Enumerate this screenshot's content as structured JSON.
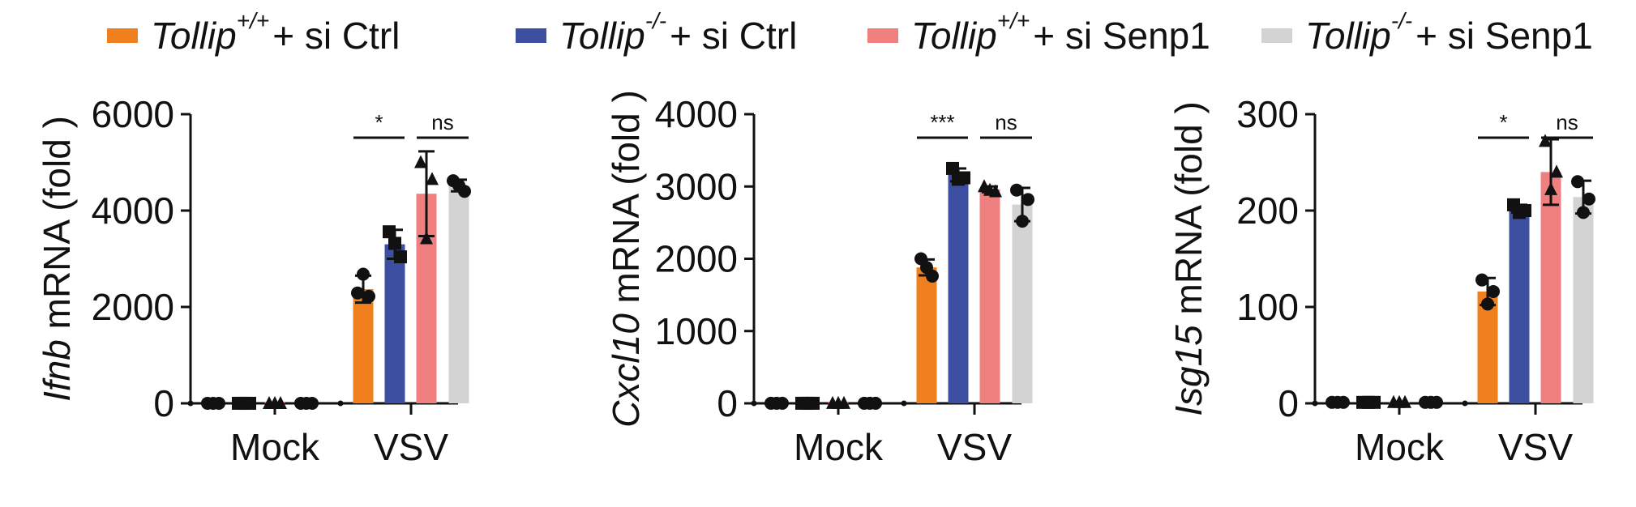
{
  "legend": [
    {
      "gene": "Tollip",
      "sup": "+/+",
      "text": " + si Ctrl",
      "color": "#F07F1E"
    },
    {
      "gene": "Tollip",
      "sup": "-/-",
      "text": " + si Ctrl",
      "color": "#3D4FA0"
    },
    {
      "gene": "Tollip",
      "sup": "+/+",
      "text": " + si Senp1",
      "color": "#F08080"
    },
    {
      "gene": "Tollip",
      "sup": "-/-",
      "text": " + si Senp1",
      "color": "#D3D3D3"
    }
  ],
  "chart_data": [
    {
      "type": "bar",
      "ylabel_gene": "Ifnb",
      "ylabel_text": " mRNA (fold )",
      "ylim": [
        0,
        6000
      ],
      "yticks": [
        "0",
        "2000",
        "4000",
        "6000"
      ],
      "categories": [
        "Mock",
        "VSV"
      ],
      "series": [
        {
          "values": [
            1,
            2370
          ],
          "err": [
            0,
            280
          ],
          "points": [
            [
              1,
              1,
              1
            ],
            [
              2290,
              2220,
              2680
            ]
          ],
          "marker": "circle"
        },
        {
          "values": [
            1,
            3300
          ],
          "err": [
            0,
            300
          ],
          "points": [
            [
              1,
              1,
              1
            ],
            [
              3560,
              3040,
              3320
            ]
          ],
          "marker": "square"
        },
        {
          "values": [
            1,
            4350
          ],
          "err": [
            0,
            880
          ],
          "points": [
            [
              1,
              1,
              1
            ],
            [
              5000,
              4650,
              3420
            ]
          ],
          "marker": "triangle"
        },
        {
          "values": [
            1,
            4520
          ],
          "err": [
            0,
            120
          ],
          "points": [
            [
              1,
              1,
              1
            ],
            [
              4620,
              4400,
              4520
            ]
          ],
          "marker": "circle"
        }
      ],
      "significance": [
        {
          "label": "*",
          "from_series": 0,
          "to_series": 1
        },
        {
          "label": "ns",
          "from_series": 2,
          "to_series": 3
        }
      ]
    },
    {
      "type": "bar",
      "ylabel_gene": "Cxcl10",
      "ylabel_text": " mRNA (fold )",
      "ylim": [
        0,
        4000
      ],
      "yticks": [
        "0",
        "1000",
        "2000",
        "3000",
        "4000"
      ],
      "categories": [
        "Mock",
        "VSV"
      ],
      "series": [
        {
          "values": [
            1,
            1880
          ],
          "err": [
            0,
            110
          ],
          "points": [
            [
              1,
              1,
              1
            ],
            [
              2000,
              1760,
              1880
            ]
          ],
          "marker": "circle"
        },
        {
          "values": [
            1,
            3160
          ],
          "err": [
            0,
            90
          ],
          "points": [
            [
              1,
              1,
              1
            ],
            [
              3250,
              3120,
              3100
            ]
          ],
          "marker": "square"
        },
        {
          "values": [
            1,
            2960
          ],
          "err": [
            0,
            40
          ],
          "points": [
            [
              1,
              1,
              1
            ],
            [
              3000,
              2930,
              2950
            ]
          ],
          "marker": "triangle"
        },
        {
          "values": [
            1,
            2750
          ],
          "err": [
            0,
            230
          ],
          "points": [
            [
              1,
              1,
              1
            ],
            [
              2950,
              2820,
              2520
            ]
          ],
          "marker": "circle"
        }
      ],
      "significance": [
        {
          "label": "***",
          "from_series": 0,
          "to_series": 1
        },
        {
          "label": "ns",
          "from_series": 2,
          "to_series": 3
        }
      ]
    },
    {
      "type": "bar",
      "ylabel_gene": "Isg15",
      "ylabel_text": " mRNA (fold )",
      "ylim": [
        0,
        300
      ],
      "yticks": [
        "0",
        "100",
        "200",
        "300"
      ],
      "categories": [
        "Mock",
        "VSV"
      ],
      "series": [
        {
          "values": [
            1,
            116
          ],
          "err": [
            0,
            14
          ],
          "points": [
            [
              1,
              1,
              1
            ],
            [
              128,
              116,
              103
            ]
          ],
          "marker": "circle"
        },
        {
          "values": [
            1,
            202
          ],
          "err": [
            0,
            4
          ],
          "points": [
            [
              1,
              1,
              1
            ],
            [
              206,
              200,
              198
            ]
          ],
          "marker": "square"
        },
        {
          "values": [
            1,
            240
          ],
          "err": [
            0,
            34
          ],
          "points": [
            [
              1,
              1,
              1
            ],
            [
              272,
              240,
              222
            ]
          ],
          "marker": "triangle"
        },
        {
          "values": [
            1,
            214
          ],
          "err": [
            0,
            17
          ],
          "points": [
            [
              1,
              1,
              1
            ],
            [
              230,
              212,
              198
            ]
          ],
          "marker": "circle"
        }
      ],
      "significance": [
        {
          "label": "*",
          "from_series": 0,
          "to_series": 1
        },
        {
          "label": "ns",
          "from_series": 2,
          "to_series": 3
        }
      ]
    }
  ]
}
